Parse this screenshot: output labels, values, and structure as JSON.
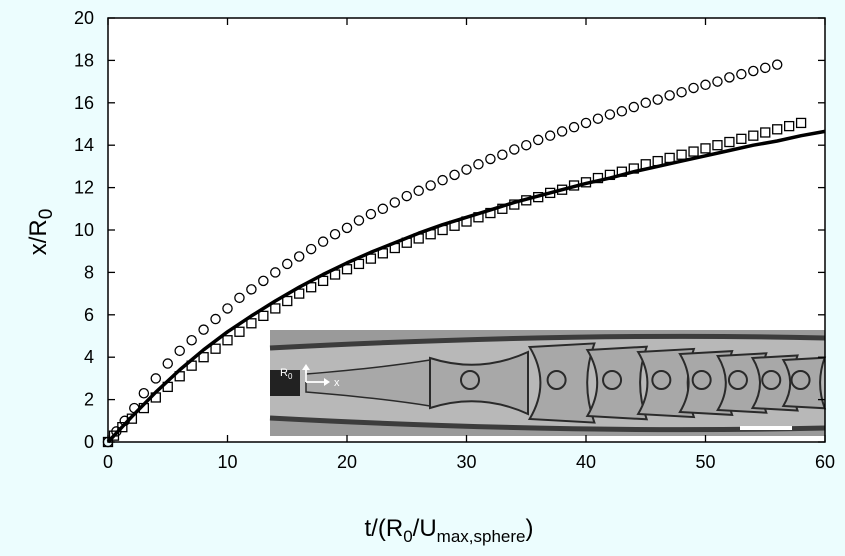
{
  "chart_data": {
    "type": "scatter",
    "title": "",
    "x_axis": {
      "range": [
        0,
        60
      ],
      "ticks": [
        "0",
        "10",
        "20",
        "30",
        "40",
        "50",
        "60"
      ],
      "label_main": "t/(R",
      "label_sub1": "0",
      "label_mid": "/U",
      "label_sub2": "max,sphere",
      "label_end": ")"
    },
    "y_axis": {
      "range": [
        0,
        20
      ],
      "ticks": [
        "0",
        "2",
        "4",
        "6",
        "8",
        "10",
        "12",
        "14",
        "16",
        "18",
        "20"
      ],
      "label_main": "x/R",
      "label_sub": "0"
    },
    "grid": false,
    "series": [
      {
        "marker": "circle",
        "points": [
          [
            0,
            0
          ],
          [
            0.7,
            0.5
          ],
          [
            1.4,
            1.0
          ],
          [
            2.2,
            1.6
          ],
          [
            3,
            2.3
          ],
          [
            4,
            3.0
          ],
          [
            5,
            3.7
          ],
          [
            6,
            4.3
          ],
          [
            7,
            4.8
          ],
          [
            8,
            5.3
          ],
          [
            9,
            5.8
          ],
          [
            10,
            6.3
          ],
          [
            11,
            6.8
          ],
          [
            12,
            7.2
          ],
          [
            13,
            7.6
          ],
          [
            14,
            8.0
          ],
          [
            15,
            8.4
          ],
          [
            16,
            8.75
          ],
          [
            17,
            9.1
          ],
          [
            18,
            9.45
          ],
          [
            19,
            9.8
          ],
          [
            20,
            10.1
          ],
          [
            21,
            10.45
          ],
          [
            22,
            10.75
          ],
          [
            23,
            11.0
          ],
          [
            24,
            11.3
          ],
          [
            25,
            11.6
          ],
          [
            26,
            11.85
          ],
          [
            27,
            12.1
          ],
          [
            28,
            12.35
          ],
          [
            29,
            12.6
          ],
          [
            30,
            12.85
          ],
          [
            31,
            13.1
          ],
          [
            32,
            13.35
          ],
          [
            33,
            13.55
          ],
          [
            34,
            13.8
          ],
          [
            35,
            14.0
          ],
          [
            36,
            14.25
          ],
          [
            37,
            14.45
          ],
          [
            38,
            14.65
          ],
          [
            39,
            14.85
          ],
          [
            40,
            15.05
          ],
          [
            41,
            15.25
          ],
          [
            42,
            15.45
          ],
          [
            43,
            15.6
          ],
          [
            44,
            15.8
          ],
          [
            45,
            16.0
          ],
          [
            46,
            16.15
          ],
          [
            47,
            16.35
          ],
          [
            48,
            16.5
          ],
          [
            49,
            16.7
          ],
          [
            50,
            16.85
          ],
          [
            51,
            17.0
          ],
          [
            52,
            17.2
          ],
          [
            53,
            17.35
          ],
          [
            54,
            17.5
          ],
          [
            55,
            17.65
          ],
          [
            56,
            17.8
          ]
        ]
      },
      {
        "marker": "square",
        "points": [
          [
            0,
            0
          ],
          [
            0.5,
            0.3
          ],
          [
            1.2,
            0.7
          ],
          [
            2,
            1.1
          ],
          [
            3,
            1.6
          ],
          [
            4,
            2.1
          ],
          [
            5,
            2.6
          ],
          [
            6,
            3.1
          ],
          [
            7,
            3.6
          ],
          [
            8,
            4.0
          ],
          [
            9,
            4.4
          ],
          [
            10,
            4.8
          ],
          [
            11,
            5.2
          ],
          [
            12,
            5.6
          ],
          [
            13,
            5.95
          ],
          [
            14,
            6.3
          ],
          [
            15,
            6.65
          ],
          [
            16,
            7.0
          ],
          [
            17,
            7.3
          ],
          [
            18,
            7.6
          ],
          [
            19,
            7.9
          ],
          [
            20,
            8.15
          ],
          [
            21,
            8.4
          ],
          [
            22,
            8.65
          ],
          [
            23,
            8.9
          ],
          [
            24,
            9.15
          ],
          [
            25,
            9.4
          ],
          [
            26,
            9.6
          ],
          [
            27,
            9.8
          ],
          [
            28,
            10.0
          ],
          [
            29,
            10.2
          ],
          [
            30,
            10.4
          ],
          [
            31,
            10.6
          ],
          [
            32,
            10.8
          ],
          [
            33,
            11.0
          ],
          [
            34,
            11.2
          ],
          [
            35,
            11.4
          ],
          [
            36,
            11.55
          ],
          [
            37,
            11.75
          ],
          [
            38,
            11.9
          ],
          [
            39,
            12.1
          ],
          [
            40,
            12.25
          ],
          [
            41,
            12.45
          ],
          [
            42,
            12.6
          ],
          [
            43,
            12.75
          ],
          [
            44,
            12.9
          ],
          [
            45,
            13.1
          ],
          [
            46,
            13.25
          ],
          [
            47,
            13.4
          ],
          [
            48,
            13.55
          ],
          [
            49,
            13.7
          ],
          [
            50,
            13.85
          ],
          [
            51,
            14.0
          ],
          [
            52,
            14.15
          ],
          [
            53,
            14.3
          ],
          [
            54,
            14.45
          ],
          [
            55,
            14.6
          ],
          [
            56,
            14.75
          ],
          [
            57,
            14.9
          ],
          [
            58,
            15.05
          ]
        ]
      },
      {
        "marker": "line",
        "points": [
          [
            0,
            0
          ],
          [
            2,
            1.2
          ],
          [
            4,
            2.35
          ],
          [
            6,
            3.4
          ],
          [
            8,
            4.35
          ],
          [
            10,
            5.2
          ],
          [
            12,
            5.95
          ],
          [
            14,
            6.65
          ],
          [
            16,
            7.3
          ],
          [
            18,
            7.9
          ],
          [
            20,
            8.45
          ],
          [
            22,
            8.95
          ],
          [
            24,
            9.4
          ],
          [
            26,
            9.85
          ],
          [
            28,
            10.25
          ],
          [
            30,
            10.6
          ],
          [
            32,
            10.95
          ],
          [
            34,
            11.3
          ],
          [
            36,
            11.6
          ],
          [
            38,
            11.9
          ],
          [
            40,
            12.2
          ],
          [
            42,
            12.45
          ],
          [
            44,
            12.75
          ],
          [
            46,
            13.0
          ],
          [
            48,
            13.25
          ],
          [
            50,
            13.5
          ],
          [
            52,
            13.75
          ],
          [
            54,
            14.0
          ],
          [
            56,
            14.2
          ],
          [
            58,
            14.45
          ],
          [
            60,
            14.65
          ]
        ]
      }
    ],
    "inset": {
      "labels": {
        "r0_main": "R",
        "r0_sub": "0",
        "x_label": "x"
      },
      "colors": {
        "background": "#9a9a9a",
        "channel": "#b8b8b8",
        "wall": "#3c3c3c",
        "droplet": "#a8a8a8",
        "outline": "#2a2a2a",
        "scale_bar": "#ffffff"
      }
    }
  }
}
